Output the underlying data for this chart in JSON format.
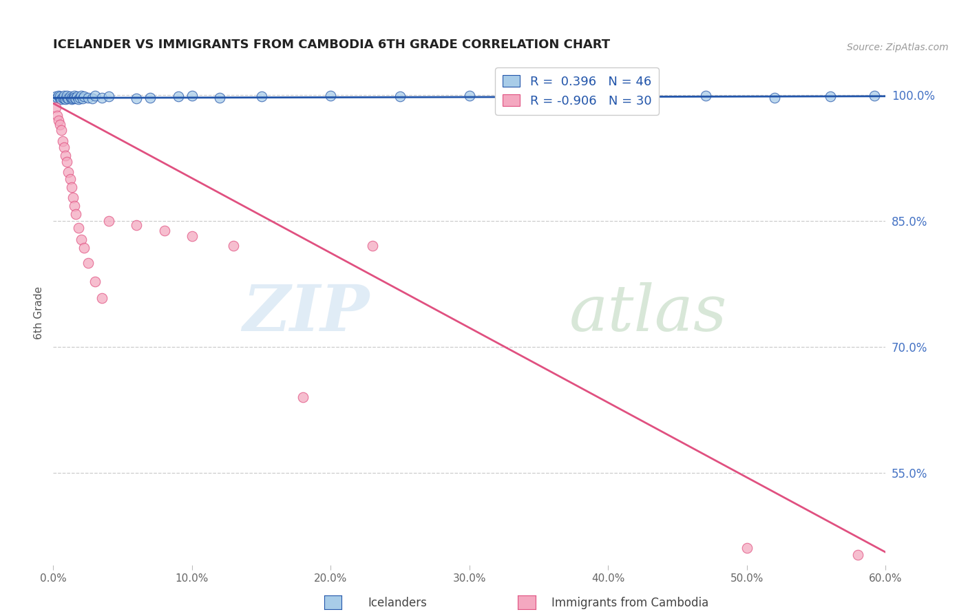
{
  "title": "ICELANDER VS IMMIGRANTS FROM CAMBODIA 6TH GRADE CORRELATION CHART",
  "source": "Source: ZipAtlas.com",
  "ylabel": "6th Grade",
  "xlabel_ticks": [
    "0.0%",
    "10.0%",
    "20.0%",
    "30.0%",
    "40.0%",
    "50.0%",
    "60.0%"
  ],
  "xlabel_vals": [
    0.0,
    0.1,
    0.2,
    0.3,
    0.4,
    0.5,
    0.6
  ],
  "ytick_labels": [
    "100.0%",
    "85.0%",
    "70.0%",
    "55.0%"
  ],
  "ytick_vals": [
    1.0,
    0.85,
    0.7,
    0.55
  ],
  "xmin": 0.0,
  "xmax": 0.6,
  "ymin": 0.44,
  "ymax": 1.04,
  "blue_R": 0.396,
  "blue_N": 46,
  "pink_R": -0.906,
  "pink_N": 30,
  "legend_label_blue": "Icelanders",
  "legend_label_pink": "Immigrants from Cambodia",
  "blue_color": "#a8cce8",
  "blue_line_color": "#2255aa",
  "pink_color": "#f4a8c0",
  "pink_line_color": "#e05080",
  "watermark_zip": "ZIP",
  "watermark_atlas": "atlas",
  "blue_scatter_x": [
    0.002,
    0.003,
    0.004,
    0.005,
    0.005,
    0.006,
    0.007,
    0.008,
    0.008,
    0.009,
    0.01,
    0.01,
    0.011,
    0.012,
    0.013,
    0.013,
    0.014,
    0.015,
    0.015,
    0.016,
    0.017,
    0.018,
    0.019,
    0.02,
    0.021,
    0.022,
    0.025,
    0.028,
    0.03,
    0.035,
    0.04,
    0.06,
    0.07,
    0.09,
    0.1,
    0.12,
    0.15,
    0.2,
    0.25,
    0.3,
    0.35,
    0.42,
    0.47,
    0.52,
    0.56,
    0.592
  ],
  "blue_scatter_y": [
    0.998,
    0.997,
    0.999,
    0.996,
    0.998,
    0.995,
    0.997,
    0.996,
    0.999,
    0.995,
    0.997,
    0.999,
    0.996,
    0.998,
    0.995,
    0.997,
    0.996,
    0.999,
    0.997,
    0.996,
    0.998,
    0.995,
    0.997,
    0.999,
    0.996,
    0.998,
    0.997,
    0.996,
    0.999,
    0.997,
    0.998,
    0.996,
    0.997,
    0.998,
    0.999,
    0.997,
    0.998,
    0.999,
    0.998,
    0.999,
    0.997,
    0.998,
    0.999,
    0.997,
    0.998,
    0.999
  ],
  "blue_line_x": [
    0.0,
    0.6
  ],
  "blue_line_y": [
    0.9965,
    0.9985
  ],
  "pink_scatter_x": [
    0.002,
    0.003,
    0.004,
    0.005,
    0.006,
    0.007,
    0.008,
    0.009,
    0.01,
    0.011,
    0.012,
    0.013,
    0.014,
    0.015,
    0.016,
    0.018,
    0.02,
    0.022,
    0.025,
    0.03,
    0.035,
    0.04,
    0.06,
    0.08,
    0.1,
    0.13,
    0.18,
    0.23,
    0.5,
    0.58
  ],
  "pink_scatter_y": [
    0.985,
    0.975,
    0.97,
    0.965,
    0.958,
    0.945,
    0.938,
    0.928,
    0.92,
    0.908,
    0.9,
    0.89,
    0.878,
    0.868,
    0.858,
    0.842,
    0.828,
    0.818,
    0.8,
    0.778,
    0.758,
    0.85,
    0.845,
    0.838,
    0.832,
    0.82,
    0.64,
    0.82,
    0.46,
    0.452
  ],
  "pink_line_x": [
    0.0,
    0.6
  ],
  "pink_line_y": [
    0.99,
    0.455
  ]
}
